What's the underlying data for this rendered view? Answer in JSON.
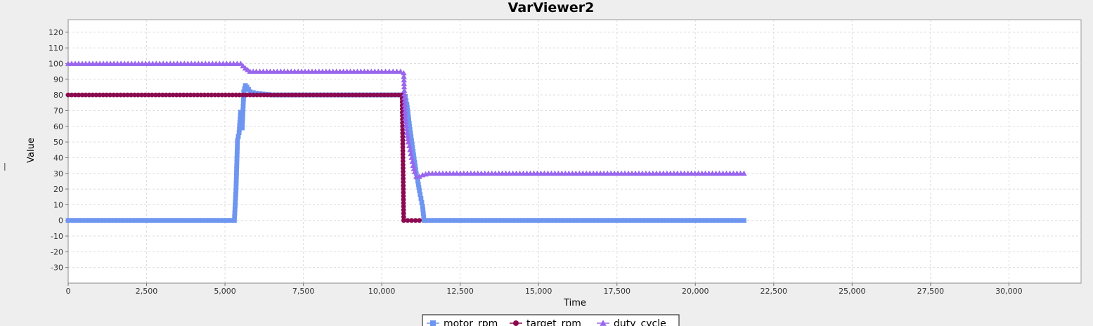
{
  "window": {
    "side_mark": "|"
  },
  "chart_data": {
    "type": "line",
    "title": "VarViewer2",
    "xlabel": "Time",
    "ylabel": "Value",
    "xlim": [
      0,
      32300
    ],
    "ylim": [
      -40,
      128
    ],
    "x_ticks": [
      0,
      2500,
      5000,
      7500,
      10000,
      12500,
      15000,
      17500,
      20000,
      22500,
      25000,
      27500,
      30000
    ],
    "x_tick_labels": [
      "0",
      "2,500",
      "5,000",
      "7,500",
      "10,000",
      "12,500",
      "15,000",
      "17,500",
      "20,000",
      "22,500",
      "25,000",
      "27,500",
      "30,000"
    ],
    "y_ticks": [
      -30,
      -20,
      -10,
      0,
      10,
      20,
      30,
      40,
      50,
      60,
      70,
      80,
      90,
      100,
      110,
      120
    ],
    "y_tick_labels": [
      "-30",
      "-20",
      "-10",
      "0",
      "10",
      "20",
      "30",
      "40",
      "50",
      "60",
      "70",
      "80",
      "90",
      "100",
      "110",
      "120"
    ],
    "grid": true,
    "legend_position": "bottom",
    "series": [
      {
        "name": "motor_rpm",
        "color": "#6e96f0",
        "marker": "square",
        "x": [
          0,
          5300,
          5350,
          5400,
          5450,
          5500,
          5550,
          5600,
          5650,
          5700,
          5800,
          6000,
          6500,
          7000,
          8000,
          9000,
          10000,
          10650,
          10750,
          10800,
          10850,
          10900,
          10950,
          11000,
          11050,
          11100,
          11150,
          11200,
          11250,
          11300,
          11350,
          21550
        ],
        "y": [
          0,
          0,
          19,
          51,
          56,
          69,
          59,
          82,
          86,
          85,
          82,
          81,
          80,
          80,
          80,
          80,
          80,
          80,
          79,
          74,
          66,
          58,
          51,
          44,
          37,
          30,
          25,
          19,
          14,
          9,
          0,
          0
        ]
      },
      {
        "name": "target_rpm",
        "color": "#8b0a50",
        "marker": "circle",
        "x": [
          0,
          6800,
          10650,
          10700,
          11200
        ],
        "y": [
          80,
          80,
          80,
          0,
          0
        ]
      },
      {
        "name": "duty_cycle",
        "color": "#9966ee",
        "marker": "triangle",
        "x": [
          0,
          5500,
          5650,
          5800,
          6000,
          7000,
          8000,
          9000,
          10000,
          10600,
          10700,
          10750,
          10800,
          10850,
          10900,
          10950,
          11000,
          11050,
          11100,
          11200,
          11300,
          11500,
          21550
        ],
        "y": [
          100,
          100,
          97,
          95,
          95,
          95,
          95,
          95,
          95,
          95,
          94,
          65,
          56,
          50,
          45,
          40,
          35,
          31,
          28,
          28,
          29,
          30,
          30
        ]
      }
    ]
  }
}
